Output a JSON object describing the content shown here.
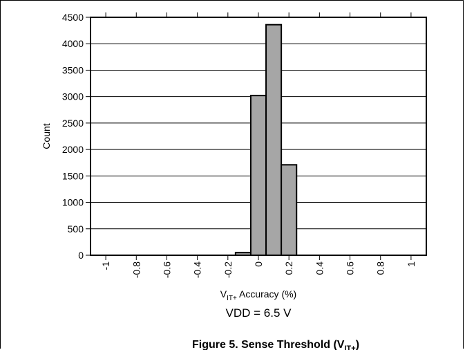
{
  "chart_data": {
    "type": "bar",
    "ylabel": "Count",
    "xlabel_main": "V",
    "xlabel_sub": "IT+",
    "xlabel_rest": " Accuracy (%)",
    "ylim": [
      0,
      4500
    ],
    "xlim": [
      -1.1,
      1.1
    ],
    "yticks": [
      0,
      500,
      1000,
      1500,
      2000,
      2500,
      3000,
      3500,
      4000,
      4500
    ],
    "xticks": [
      -1,
      -0.8,
      -0.6,
      -0.4,
      -0.2,
      0,
      0.2,
      0.4,
      0.6,
      0.8,
      1
    ],
    "xtick_labels": [
      "-1",
      "-0.8",
      "-0.6",
      "-0.4",
      "-0.2",
      "0",
      "0.2",
      "0.4",
      "0.6",
      "0.8",
      "1"
    ],
    "bin_width": 0.1,
    "bins": [
      {
        "x": -1.0,
        "count": 0
      },
      {
        "x": -0.9,
        "count": 0
      },
      {
        "x": -0.8,
        "count": 0
      },
      {
        "x": -0.7,
        "count": 0
      },
      {
        "x": -0.6,
        "count": 0
      },
      {
        "x": -0.5,
        "count": 0
      },
      {
        "x": -0.4,
        "count": 0
      },
      {
        "x": -0.3,
        "count": 0
      },
      {
        "x": -0.2,
        "count": 0
      },
      {
        "x": -0.1,
        "count": 50
      },
      {
        "x": 0.0,
        "count": 3020
      },
      {
        "x": 0.1,
        "count": 4360
      },
      {
        "x": 0.2,
        "count": 1710
      },
      {
        "x": 0.3,
        "count": 0
      },
      {
        "x": 0.4,
        "count": 0
      },
      {
        "x": 0.5,
        "count": 0
      },
      {
        "x": 0.6,
        "count": 0
      },
      {
        "x": 0.7,
        "count": 0
      },
      {
        "x": 0.8,
        "count": 0
      },
      {
        "x": 0.9,
        "count": 0
      },
      {
        "x": 1.0,
        "count": 0
      }
    ],
    "bar_color": "#a6a6a6",
    "grid": "horizontal",
    "annotation": "VDD = 6.5 V"
  },
  "caption": {
    "text": "Figure 5. Sense Threshold (V",
    "sub": "IT+",
    "end": ")"
  }
}
